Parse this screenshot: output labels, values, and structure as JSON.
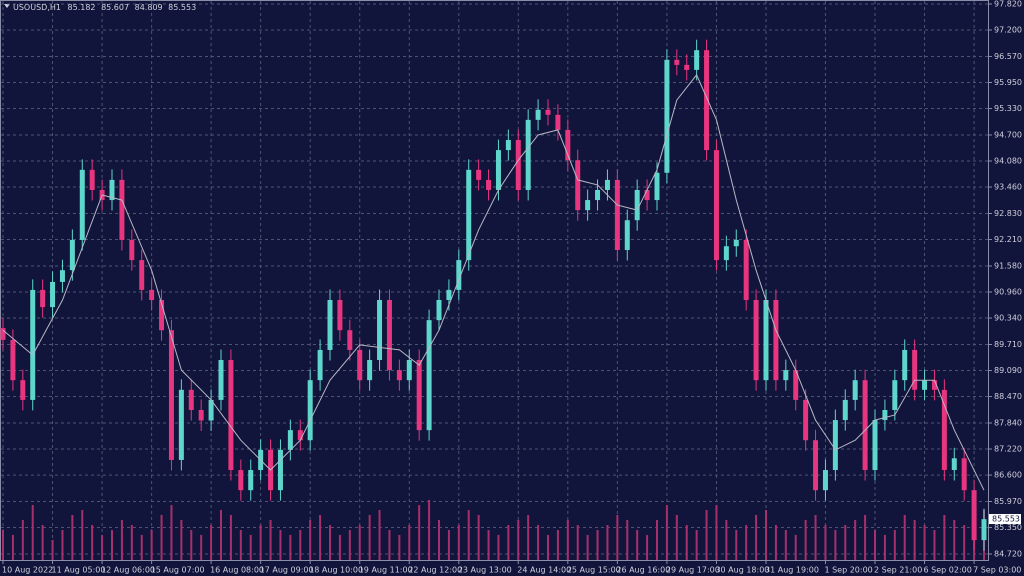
{
  "chart_data": {
    "type": "candlestick",
    "symbol": "USOUSD,H1",
    "header_ohlc": {
      "open": 85.182,
      "high": 85.607,
      "low": 84.809,
      "close": 85.553
    },
    "categories": [
      "10 Aug 2022",
      null,
      null,
      null,
      null,
      "11 Aug 05:00",
      null,
      null,
      null,
      null,
      "12 Aug 06:00",
      null,
      null,
      null,
      null,
      "15 Aug 07:00",
      null,
      null,
      null,
      null,
      null,
      "16 Aug 08:00",
      null,
      null,
      null,
      null,
      "17 Aug 09:00",
      null,
      null,
      null,
      null,
      "18 Aug 10:00",
      null,
      null,
      null,
      null,
      "19 Aug 11:00",
      null,
      null,
      null,
      null,
      "22 Aug 12:00",
      null,
      null,
      null,
      null,
      "23 Aug 13:00",
      null,
      null,
      null,
      null,
      null,
      "24 Aug 14:00",
      null,
      null,
      null,
      null,
      "25 Aug 15:00",
      null,
      null,
      null,
      null,
      "26 Aug 16:00",
      null,
      null,
      null,
      null,
      "29 Aug 17:00",
      null,
      null,
      null,
      null,
      "30 Aug 18:00",
      null,
      null,
      null,
      null,
      "31 Aug 19:00",
      null,
      null,
      null,
      null,
      null,
      "1 Sep 20:00",
      null,
      null,
      null,
      null,
      "2 Sep 21:00",
      null,
      null,
      null,
      null,
      "6 Sep 02:00",
      null,
      null,
      null,
      null,
      "7 Sep 03:00",
      null
    ],
    "open": [
      90.1,
      89.82,
      88.86,
      88.39,
      91.01,
      90.6,
      91.2,
      91.48,
      92.2,
      93.87,
      93.39,
      93.15,
      93.63,
      92.2,
      91.72,
      91.01,
      90.77,
      90.05,
      86.96,
      88.63,
      88.15,
      87.9,
      88.39,
      89.34,
      86.72,
      86.24,
      86.72,
      87.2,
      86.24,
      87.2,
      87.67,
      87.43,
      88.86,
      89.58,
      90.77,
      90.05,
      89.58,
      88.86,
      89.34,
      90.77,
      89.1,
      88.86,
      89.34,
      87.67,
      90.29,
      90.77,
      91.01,
      91.72,
      93.87,
      93.63,
      93.39,
      94.34,
      94.58,
      93.39,
      95.06,
      95.3,
      95.18,
      94.82,
      94.1,
      92.91,
      93.15,
      93.39,
      93.63,
      91.96,
      92.67,
      93.39,
      93.15,
      93.8,
      96.49,
      96.37,
      96.25,
      96.72,
      94.34,
      91.72,
      92.05,
      92.2,
      90.77,
      88.86,
      90.77,
      88.86,
      89.1,
      88.39,
      87.43,
      86.24,
      86.72,
      87.91,
      88.39,
      88.86,
      86.72,
      87.91,
      88.15,
      88.86,
      89.58,
      88.63,
      88.86,
      88.63,
      86.72,
      87.0,
      86.24,
      85.05
    ],
    "high": [
      90.35,
      90.07,
      89.11,
      91.26,
      91.26,
      91.45,
      91.73,
      92.45,
      94.12,
      94.12,
      93.64,
      93.88,
      93.88,
      92.45,
      91.97,
      91.26,
      91.02,
      90.3,
      88.88,
      88.88,
      88.4,
      88.64,
      89.59,
      89.59,
      86.97,
      86.97,
      87.45,
      87.45,
      87.45,
      87.92,
      87.92,
      89.11,
      89.83,
      91.02,
      91.02,
      90.3,
      89.83,
      89.59,
      91.02,
      91.02,
      89.35,
      89.59,
      89.59,
      90.54,
      91.02,
      91.26,
      91.97,
      94.12,
      94.12,
      93.88,
      94.59,
      94.83,
      94.83,
      95.31,
      95.55,
      95.55,
      95.43,
      95.07,
      94.35,
      93.4,
      93.64,
      93.88,
      93.88,
      92.92,
      93.64,
      93.64,
      94.05,
      96.74,
      96.74,
      96.62,
      96.97,
      96.97,
      94.59,
      92.3,
      92.45,
      92.45,
      91.02,
      91.02,
      91.02,
      89.35,
      89.35,
      88.64,
      87.68,
      86.97,
      88.16,
      88.64,
      89.11,
      89.11,
      88.16,
      88.4,
      89.11,
      89.83,
      89.83,
      89.11,
      89.11,
      88.88,
      87.25,
      87.25,
      86.49,
      85.8
    ],
    "low": [
      89.57,
      88.61,
      88.14,
      88.14,
      90.35,
      90.35,
      90.95,
      91.23,
      91.95,
      93.14,
      92.9,
      92.9,
      91.95,
      91.47,
      90.76,
      90.52,
      89.8,
      86.71,
      86.71,
      87.9,
      87.65,
      87.65,
      88.14,
      86.47,
      85.99,
      85.99,
      86.47,
      85.99,
      85.99,
      86.95,
      87.18,
      87.18,
      88.61,
      89.33,
      89.8,
      89.33,
      88.61,
      88.61,
      89.09,
      88.85,
      88.61,
      88.61,
      87.42,
      87.42,
      90.04,
      90.52,
      90.76,
      91.47,
      93.38,
      93.14,
      93.14,
      94.09,
      93.14,
      93.14,
      94.81,
      94.93,
      94.57,
      93.85,
      92.66,
      92.66,
      92.9,
      93.14,
      91.71,
      91.71,
      92.42,
      92.9,
      92.9,
      93.55,
      96.12,
      96.0,
      96.0,
      94.09,
      91.47,
      91.47,
      91.8,
      90.52,
      88.61,
      88.61,
      88.61,
      88.61,
      88.14,
      87.18,
      85.99,
      85.99,
      86.47,
      87.66,
      88.14,
      86.47,
      86.47,
      87.66,
      87.9,
      88.61,
      88.38,
      88.38,
      88.38,
      86.47,
      86.47,
      85.99,
      84.8,
      84.8
    ],
    "close": [
      89.82,
      88.86,
      88.39,
      91.01,
      90.6,
      91.2,
      91.48,
      92.2,
      93.87,
      93.39,
      93.15,
      93.63,
      92.2,
      91.72,
      91.01,
      90.77,
      90.05,
      86.96,
      88.63,
      88.15,
      87.9,
      88.39,
      89.34,
      86.72,
      86.24,
      86.72,
      87.2,
      86.24,
      87.2,
      87.67,
      87.43,
      88.86,
      89.58,
      90.77,
      90.05,
      89.58,
      88.86,
      89.34,
      90.77,
      89.1,
      88.86,
      89.34,
      87.67,
      90.29,
      90.77,
      91.01,
      91.72,
      93.87,
      93.63,
      93.39,
      94.34,
      94.58,
      93.39,
      95.06,
      95.3,
      95.18,
      94.82,
      94.1,
      92.91,
      93.15,
      93.39,
      93.63,
      91.96,
      92.67,
      93.39,
      93.15,
      93.8,
      96.49,
      96.37,
      96.25,
      96.72,
      94.34,
      91.72,
      92.05,
      92.2,
      90.77,
      88.86,
      90.77,
      88.86,
      89.1,
      88.39,
      87.43,
      86.24,
      86.72,
      87.91,
      88.39,
      88.86,
      86.72,
      87.91,
      88.15,
      88.86,
      89.58,
      88.63,
      88.86,
      88.63,
      86.72,
      87.0,
      86.24,
      85.05,
      85.55
    ],
    "volume": [
      30,
      25,
      40,
      55,
      35,
      20,
      30,
      45,
      50,
      35,
      25,
      30,
      40,
      35,
      25,
      30,
      45,
      55,
      40,
      30,
      25,
      35,
      50,
      45,
      30,
      25,
      35,
      40,
      30,
      25,
      30,
      40,
      45,
      35,
      25,
      30,
      35,
      45,
      50,
      30,
      25,
      35,
      55,
      60,
      40,
      30,
      35,
      50,
      45,
      30,
      25,
      35,
      40,
      45,
      35,
      25,
      30,
      40,
      35,
      25,
      30,
      35,
      45,
      40,
      30,
      25,
      40,
      55,
      45,
      35,
      30,
      50,
      55,
      40,
      30,
      35,
      45,
      50,
      35,
      30,
      25,
      40,
      45,
      35,
      30,
      35,
      40,
      45,
      30,
      25,
      30,
      45,
      40,
      35,
      30,
      45,
      40,
      35,
      55,
      50
    ],
    "moving_average": {
      "color": "#b8b8c4",
      "x": [
        0,
        3,
        6,
        10,
        12,
        15,
        18,
        21,
        24,
        27,
        30,
        33,
        36,
        40,
        42,
        44,
        46,
        48,
        50,
        52,
        54,
        56,
        58,
        60,
        62,
        64,
        66,
        68,
        70,
        72,
        74,
        76,
        78,
        80,
        82,
        84,
        86,
        88,
        90,
        92,
        94,
        96,
        99
      ],
      "values": [
        90.05,
        89.46,
        90.77,
        93.27,
        93.15,
        91.48,
        89.1,
        88.39,
        87.43,
        86.72,
        87.43,
        88.86,
        89.7,
        89.58,
        89.22,
        90.05,
        91.25,
        92.44,
        93.39,
        94.1,
        94.7,
        94.82,
        93.63,
        93.51,
        93.03,
        92.91,
        93.87,
        95.53,
        96.13,
        95.06,
        93.15,
        91.48,
        90.05,
        89.1,
        87.91,
        87.2,
        87.43,
        87.91,
        88.03,
        88.86,
        88.86,
        87.67,
        86.24
      ]
    },
    "up_color": "#5fd6cc",
    "down_color": "#e8357f",
    "volume_color": "#a8306a",
    "ylim": [
      84.577,
      97.915
    ],
    "yticks": [
      {
        "value": 97.82,
        "label": "97.820"
      },
      {
        "value": 97.2,
        "label": "97.200"
      },
      {
        "value": 96.57,
        "label": "96.570"
      },
      {
        "value": 95.95,
        "label": "95.950"
      },
      {
        "value": 95.33,
        "label": "95.330"
      },
      {
        "value": 94.7,
        "label": "94.700"
      },
      {
        "value": 94.08,
        "label": "94.080"
      },
      {
        "value": 93.46,
        "label": "93.460"
      },
      {
        "value": 92.83,
        "label": "92.830"
      },
      {
        "value": 92.21,
        "label": "92.210"
      },
      {
        "value": 91.58,
        "label": "91.580"
      },
      {
        "value": 90.96,
        "label": "90.960"
      },
      {
        "value": 90.34,
        "label": "90.340"
      },
      {
        "value": 89.71,
        "label": "89.710"
      },
      {
        "value": 89.09,
        "label": "89.090"
      },
      {
        "value": 88.47,
        "label": "88.470"
      },
      {
        "value": 87.84,
        "label": "87.840"
      },
      {
        "value": 87.22,
        "label": "87.220"
      },
      {
        "value": 86.6,
        "label": "86.600"
      },
      {
        "value": 85.97,
        "label": "85.970"
      },
      {
        "value": 85.35,
        "label": "85.350"
      },
      {
        "value": 84.72,
        "label": "84.720"
      }
    ],
    "grid": true
  }
}
